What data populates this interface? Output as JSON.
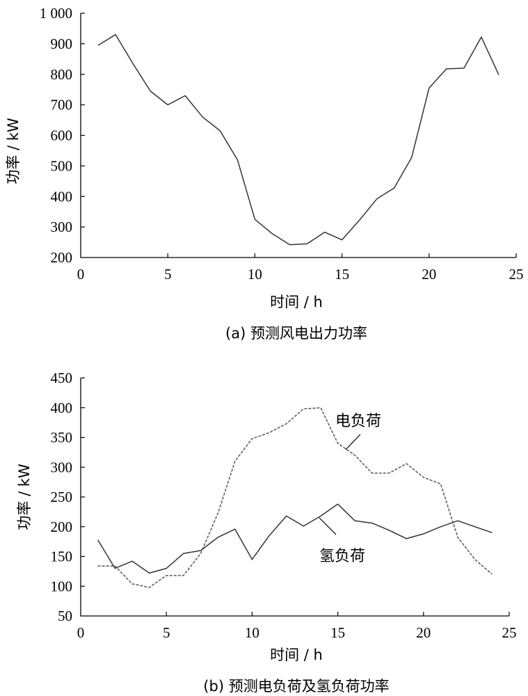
{
  "colors": {
    "axis": "#000000",
    "wind": "#333333",
    "hydrogen": "#333333",
    "electric": "#555555"
  },
  "chart_data": [
    {
      "type": "line",
      "caption": "(a)  预测风电出力功率",
      "xlabel": "时间 / h",
      "ylabel": "功率 / kW",
      "xlim": [
        0,
        25
      ],
      "ylim": [
        200,
        1000
      ],
      "x_ticks": [
        0,
        5,
        10,
        15,
        20,
        25
      ],
      "y_ticks": [
        200,
        300,
        400,
        500,
        600,
        700,
        800,
        900,
        1000
      ],
      "y_tick_labels": [
        "200",
        "300",
        "400",
        "500",
        "600",
        "700",
        "800",
        "900",
        "1 000"
      ],
      "x": [
        1,
        2,
        3,
        4,
        5,
        6,
        7,
        8,
        9,
        10,
        11,
        12,
        13,
        14,
        15,
        16,
        17,
        18,
        19,
        20,
        21,
        22,
        23,
        24
      ],
      "series": [
        {
          "style": "solid",
          "values": [
            895,
            930,
            835,
            745,
            700,
            730,
            660,
            615,
            520,
            325,
            278,
            242,
            245,
            283,
            258,
            322,
            392,
            428,
            528,
            755,
            818,
            820,
            922,
            798
          ]
        }
      ]
    },
    {
      "type": "line",
      "caption": "(b)  预测电负荷及氢负荷功率",
      "xlabel": "时间 / h",
      "ylabel": "功率 / kW",
      "xlim": [
        0,
        25
      ],
      "ylim": [
        50,
        450
      ],
      "x_ticks": [
        0,
        5,
        10,
        15,
        20,
        25
      ],
      "y_ticks": [
        50,
        100,
        150,
        200,
        250,
        300,
        350,
        400,
        450
      ],
      "y_tick_labels": [
        "50",
        "100",
        "150",
        "200",
        "250",
        "300",
        "350",
        "400",
        "450"
      ],
      "x": [
        1,
        2,
        3,
        4,
        5,
        6,
        7,
        8,
        9,
        10,
        11,
        12,
        13,
        14,
        15,
        16,
        17,
        18,
        19,
        20,
        21,
        22,
        23,
        24
      ],
      "series": [
        {
          "name": "电负荷",
          "style": "dashed",
          "values": [
            134,
            134,
            104,
            98,
            118,
            118,
            155,
            222,
            310,
            348,
            358,
            373,
            398,
            400,
            340,
            320,
            290,
            290,
            306,
            283,
            272,
            182,
            145,
            120
          ]
        },
        {
          "name": "氢负荷",
          "style": "solid",
          "values": [
            178,
            130,
            142,
            122,
            130,
            155,
            160,
            182,
            196,
            145,
            185,
            218,
            201,
            218,
            238,
            210,
            206,
            194,
            180,
            188,
            200,
            210,
            200,
            190
          ]
        }
      ]
    }
  ]
}
